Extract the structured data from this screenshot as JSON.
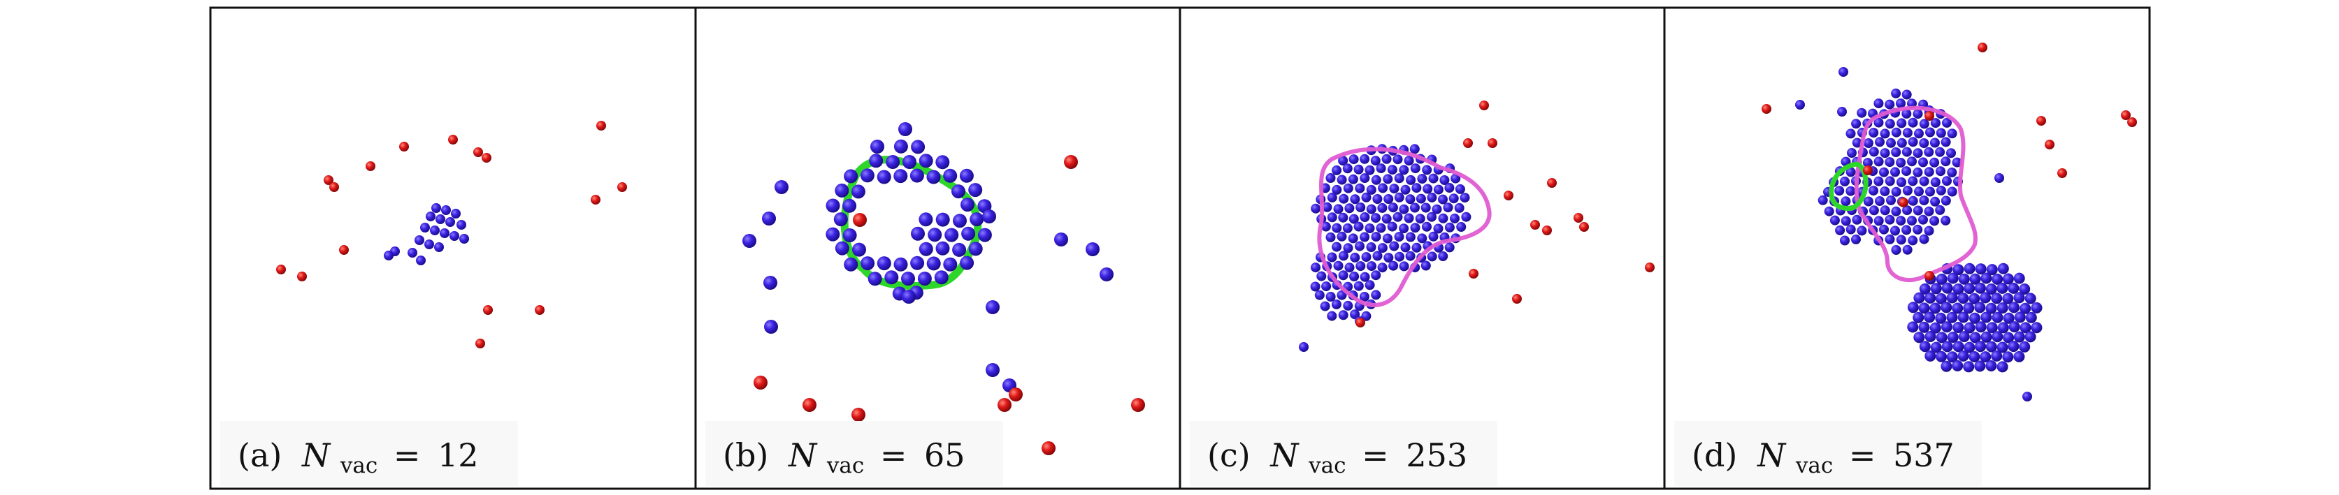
{
  "panels": [
    {
      "label": "(a)",
      "symbol": "N",
      "subscript": "vac",
      "eq": "=",
      "value": "12",
      "colors": {
        "vacancy": "#3219d6",
        "interstitial": "#d81414"
      },
      "dislocation_loops": []
    },
    {
      "label": "(b)",
      "symbol": "N",
      "subscript": "vac",
      "eq": "=",
      "value": "65",
      "colors": {
        "vacancy": "#3219d6",
        "interstitial": "#d81414"
      },
      "dislocation_loops": [
        {
          "color": "#2fd62a"
        }
      ]
    },
    {
      "label": "(c)",
      "symbol": "N",
      "subscript": "vac",
      "eq": "=",
      "value": "253",
      "colors": {
        "vacancy": "#3219d6",
        "interstitial": "#d81414"
      },
      "dislocation_loops": [
        {
          "color": "#e05bd1"
        }
      ]
    },
    {
      "label": "(d)",
      "symbol": "N",
      "subscript": "vac",
      "eq": "=",
      "value": "537",
      "colors": {
        "vacancy": "#3219d6",
        "interstitial": "#d81414"
      },
      "dislocation_loops": [
        {
          "color": "#e05bd1"
        },
        {
          "color": "#2fd62a"
        }
      ]
    }
  ]
}
